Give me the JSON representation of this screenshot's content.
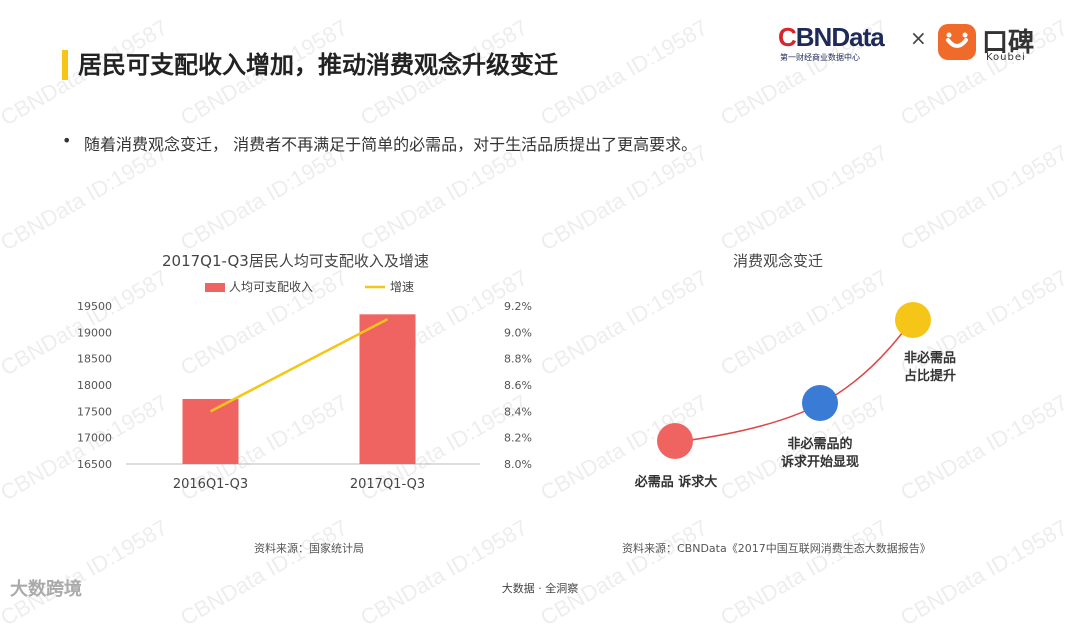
{
  "header": {
    "title": "居民可支配收入增加，推动消费观念升级变迁",
    "logo_brand": "CBNData",
    "logo_brand_sub": "第一财经商业数据中心",
    "logo_cross": "×",
    "logo_partner_cn": "口碑",
    "logo_partner_en": "Koubei"
  },
  "bullet": {
    "dot": "•",
    "text": "随着消费观念变迁， 消费者不再满足于简单的必需品，对于生活品质提出了更高要求。"
  },
  "watermark": {
    "text": "CBNData ID:19587"
  },
  "colors": {
    "bar": "#ef6461",
    "line": "#f5c518",
    "accent": "#f5c518",
    "circle_red": "#ef6461",
    "circle_blue": "#3a7bd5",
    "circle_yellow": "#f5c518",
    "curve": "#d94a43"
  },
  "chart_data": [
    {
      "type": "bar",
      "title": "2017Q1-Q3居民人均可支配收入及增速",
      "categories": [
        "2016Q1-Q3",
        "2017Q1-Q3"
      ],
      "series": [
        {
          "name": "人均可支配收入",
          "type": "bar",
          "axis": "left",
          "values": [
            17735,
            19342
          ]
        },
        {
          "name": "增速",
          "type": "line",
          "axis": "right",
          "values": [
            8.4,
            9.1
          ]
        }
      ],
      "y_left": {
        "range": [
          16500,
          19500
        ],
        "ticks": [
          "16500",
          "17000",
          "17500",
          "18000",
          "18500",
          "19000",
          "19500"
        ]
      },
      "y_right": {
        "range": [
          8.0,
          9.2
        ],
        "ticks": [
          "8.0%",
          "8.2%",
          "8.4%",
          "8.6%",
          "8.8%",
          "9.0%",
          "9.2%"
        ]
      },
      "legend": "top-center",
      "grid": false
    },
    {
      "type": "diagram",
      "title": "消费观念变迁",
      "stages": [
        {
          "label_line1": "必需品 诉求大",
          "label_line2": ""
        },
        {
          "label_line1": "非必需品的",
          "label_line2": "诉求开始显现"
        },
        {
          "label_line1": "非必需品",
          "label_line2": "占比提升"
        }
      ]
    }
  ],
  "sources": {
    "left": "资料来源：国家统计局",
    "right": "资料来源：CBNData《2017中国互联网消费生态大数据报告》"
  },
  "footer": {
    "text": "大数据 · 全洞察",
    "brand": "大数跨境"
  }
}
